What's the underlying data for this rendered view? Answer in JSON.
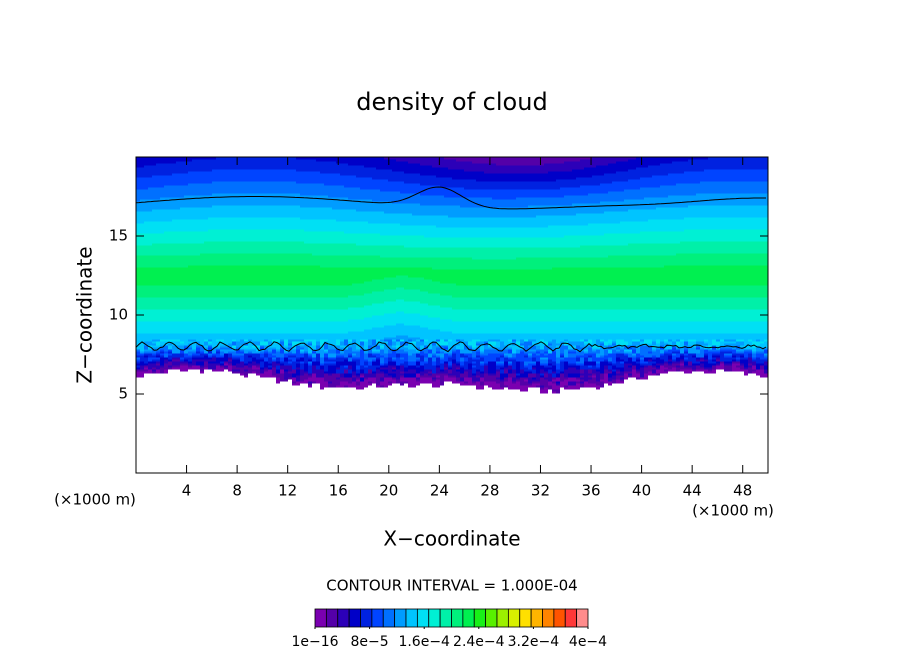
{
  "chart_data": {
    "type": "contour",
    "title": "density of cloud",
    "xlabel": "X−coordinate",
    "ylabel": "Z−coordinate",
    "x_unit": "(×1000 m)",
    "y_unit": "(×1000 m)",
    "xlim": [
      0,
      50
    ],
    "xticks": [
      4,
      8,
      12,
      16,
      20,
      24,
      28,
      32,
      36,
      40,
      44,
      48
    ],
    "ylim": [
      0,
      20
    ],
    "yticks": [
      5,
      10,
      15
    ],
    "contour_interval": "CONTOUR INTERVAL = 1.000E-04",
    "colorbar": {
      "colors": [
        "#7a00b0",
        "#5400a8",
        "#2c00b8",
        "#0000c8",
        "#0022e0",
        "#0044ff",
        "#0070ff",
        "#009cff",
        "#00c4ff",
        "#00e0f4",
        "#00f0d4",
        "#00f0a8",
        "#00f07c",
        "#00f050",
        "#18f018",
        "#58f000",
        "#9cf000",
        "#d8f000",
        "#ffe000",
        "#ffb400",
        "#ff8400",
        "#ff5400",
        "#ff3838",
        "#ff8c8c"
      ],
      "range": [
        1e-16,
        0.0004
      ],
      "ticks": [
        {
          "value": 1e-16,
          "label": "1e−16"
        },
        {
          "value": 8e-05,
          "label": "8e−5"
        },
        {
          "value": 0.00016,
          "label": "1.6e−4"
        },
        {
          "value": 0.00024,
          "label": "2.4e−4"
        },
        {
          "value": 0.00032,
          "label": "3.2e−4"
        },
        {
          "value": 0.0004,
          "label": "4e−4"
        }
      ]
    }
  }
}
